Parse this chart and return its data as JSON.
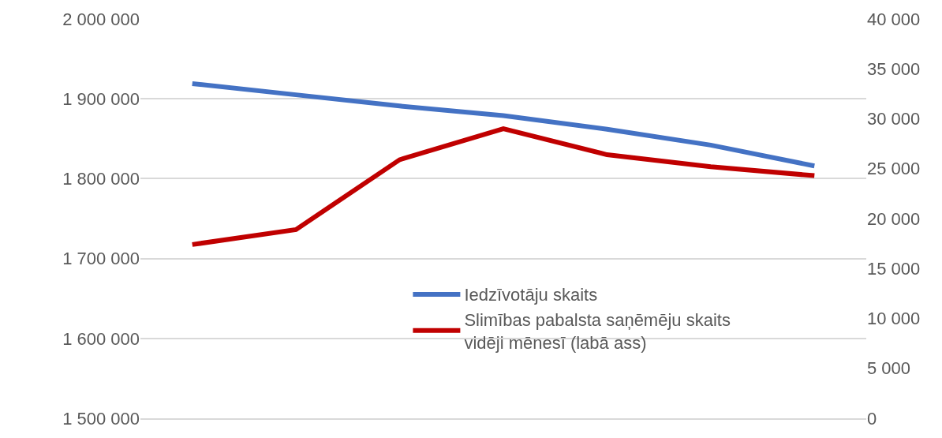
{
  "chart_data": {
    "type": "line",
    "categories": [
      null,
      null,
      null,
      null,
      null,
      null,
      null
    ],
    "series": [
      {
        "name": "Iedzīvotāju skaits",
        "color": "#4472c4",
        "values": [
          1919000,
          1905000,
          1891000,
          1879000,
          1862000,
          1842000,
          1816000
        ]
      },
      {
        "name": "Slimības pabalsta saņēmēju skaits vidēji mēnesī (labā ass)",
        "color": "#c00000",
        "axis": "y2",
        "values": [
          17400,
          18900,
          25900,
          29000,
          26400,
          25200,
          24300
        ]
      }
    ],
    "ylim": [
      1500000,
      2000000
    ],
    "yticks": [
      {
        "value": 1500000,
        "label": "1 500 000"
      },
      {
        "value": 1600000,
        "label": "1 600 000"
      },
      {
        "value": 1700000,
        "label": "1 700 000"
      },
      {
        "value": 1800000,
        "label": "1 800 000"
      },
      {
        "value": 1900000,
        "label": "1 900 000"
      },
      {
        "value": 2000000,
        "label": "2 000 000"
      }
    ],
    "y2lim": [
      0,
      40000
    ],
    "y2ticks": [
      0,
      {
        "value": 5000,
        "label": "5 000"
      },
      {
        "value": 10000,
        "label": "10 000"
      },
      {
        "value": 15000,
        "label": "15 000"
      },
      {
        "value": 20000,
        "label": "20 000"
      },
      {
        "value": 25000,
        "label": "25 000"
      },
      {
        "value": 30000,
        "label": "30 000"
      },
      {
        "value": 35000,
        "label": "35 000"
      },
      {
        "value": 40000,
        "label": "40 000"
      }
    ],
    "grid": "y",
    "legend": "bottom",
    "marker": "none",
    "line_style": "solid"
  }
}
